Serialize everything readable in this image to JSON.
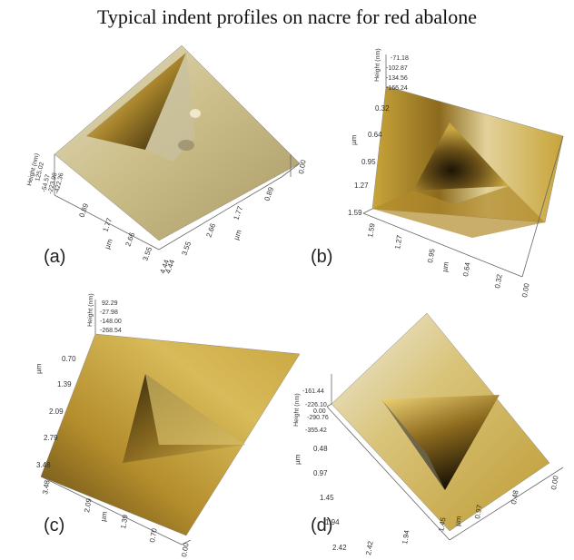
{
  "title": "Typical indent profiles on nacre for red abalone",
  "colors": {
    "surface_light": "#d9cfa6",
    "surface_mid": "#c8a83c",
    "surface_dark": "#6b5420",
    "indent": "#2a2110",
    "axis": "#555555"
  },
  "panels": [
    {
      "label": "(a)",
      "height_axis_title": "Height (nm)",
      "height_ticks": [
        "125.02",
        "-54.57",
        "-223.98",
        "-422.36"
      ],
      "x_axis_title": "µm",
      "x_ticks": [
        "0.89",
        "1.77",
        "2.66",
        "3.55",
        "4.44"
      ],
      "y_axis_title": "µm",
      "y_ticks": [
        "0.89",
        "1.77",
        "2.66",
        "3.55",
        "4.44"
      ],
      "corner_tick": "0.00"
    },
    {
      "label": "(b)",
      "height_axis_title": "Height (nm)",
      "height_ticks": [
        "-71.18",
        "-102.87",
        "-134.56",
        "-166.24"
      ],
      "x_axis_title": "µm",
      "x_ticks": [
        "0.32",
        "0.64",
        "0.95",
        "1.27",
        "1.59"
      ],
      "y_axis_title": "µm",
      "y_ticks": [
        "1.59",
        "1.27",
        "0.95",
        "0.64",
        "0.32"
      ],
      "corner_tick": "0.00"
    },
    {
      "label": "(c)",
      "height_axis_title": "Height (nm)",
      "height_ticks": [
        "92.29",
        "-27.98",
        "-148.00",
        "-268.54"
      ],
      "x_axis_title": "µm",
      "x_ticks": [
        "0.70",
        "1.39",
        "2.09",
        "2.79",
        "3.48"
      ],
      "y_axis_title": "µm",
      "y_ticks": [
        "3.48",
        "2.09",
        "1.39",
        "0.70"
      ],
      "corner_tick": "0.00"
    },
    {
      "label": "(d)",
      "height_axis_title": "Height (nm)",
      "height_ticks": [
        "-161.44",
        "-226.10",
        "0.00",
        "-290.76",
        "-355.42"
      ],
      "x_axis_title": "µm",
      "x_ticks": [
        "0.48",
        "0.97",
        "1.45",
        "1.94",
        "2.42"
      ],
      "y_axis_title": "µm",
      "y_ticks": [
        "2.42",
        "1.94",
        "1.45",
        "0.97",
        "0.48"
      ],
      "corner_tick": "0.00"
    }
  ]
}
